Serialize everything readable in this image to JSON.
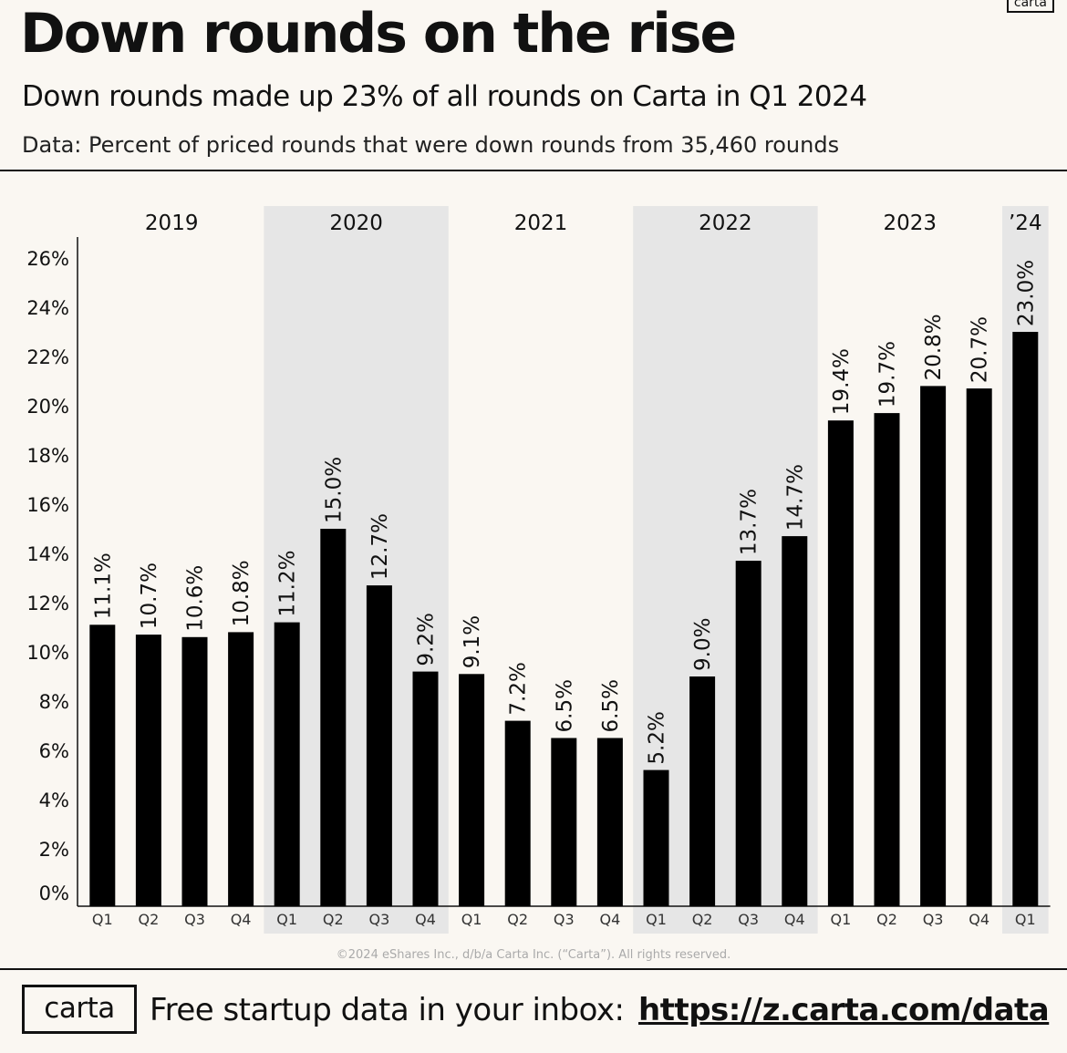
{
  "header": {
    "title": "Down rounds on the rise",
    "subtitle": "Down rounds made up 23% of all rounds on Carta in Q1 2024",
    "source": "Data: Percent of priced rounds that were down rounds from 35,460 rounds",
    "logo_tag": "carta"
  },
  "footer": {
    "copyright": "©2024 eShares Inc., d/b/a Carta Inc. (“Carta”). All rights reserved.",
    "logo": "carta",
    "text": "Free startup data in your inbox:",
    "link": "https://z.carta.com/data"
  },
  "colors": {
    "background": "#faf7f2",
    "bar": "#000000",
    "shade": "#e6e6e6"
  },
  "chart_data": {
    "type": "bar",
    "title": "Down rounds on the rise",
    "years": [
      {
        "label": "2019",
        "quarters": 4,
        "shaded": false
      },
      {
        "label": "2020",
        "quarters": 4,
        "shaded": true
      },
      {
        "label": "2021",
        "quarters": 4,
        "shaded": false
      },
      {
        "label": "2022",
        "quarters": 4,
        "shaded": true
      },
      {
        "label": "2023",
        "quarters": 4,
        "shaded": false
      },
      {
        "label": "’24",
        "quarters": 1,
        "shaded": true
      }
    ],
    "categories": [
      "Q1",
      "Q2",
      "Q3",
      "Q4",
      "Q1",
      "Q2",
      "Q3",
      "Q4",
      "Q1",
      "Q2",
      "Q3",
      "Q4",
      "Q1",
      "Q2",
      "Q3",
      "Q4",
      "Q1",
      "Q2",
      "Q3",
      "Q4",
      "Q1"
    ],
    "values": [
      11.1,
      10.7,
      10.6,
      10.8,
      11.2,
      15.0,
      12.7,
      9.2,
      9.1,
      7.2,
      6.5,
      6.5,
      5.2,
      9.0,
      13.7,
      14.7,
      19.4,
      19.7,
      20.8,
      20.7,
      23.0
    ],
    "labels": [
      "11.1%",
      "10.7%",
      "10.6%",
      "10.8%",
      "11.2%",
      "15.0%",
      "12.7%",
      "9.2%",
      "9.1%",
      "7.2%",
      "6.5%",
      "6.5%",
      "5.2%",
      "9.0%",
      "13.7%",
      "14.7%",
      "19.4%",
      "19.7%",
      "20.8%",
      "20.7%",
      "23.0%"
    ],
    "yticks": [
      "0%",
      "2%",
      "4%",
      "6%",
      "8%",
      "10%",
      "12%",
      "14%",
      "16%",
      "18%",
      "20%",
      "22%",
      "24%",
      "26%"
    ],
    "ylim": [
      0,
      27
    ],
    "grid": false,
    "legend": "none"
  }
}
